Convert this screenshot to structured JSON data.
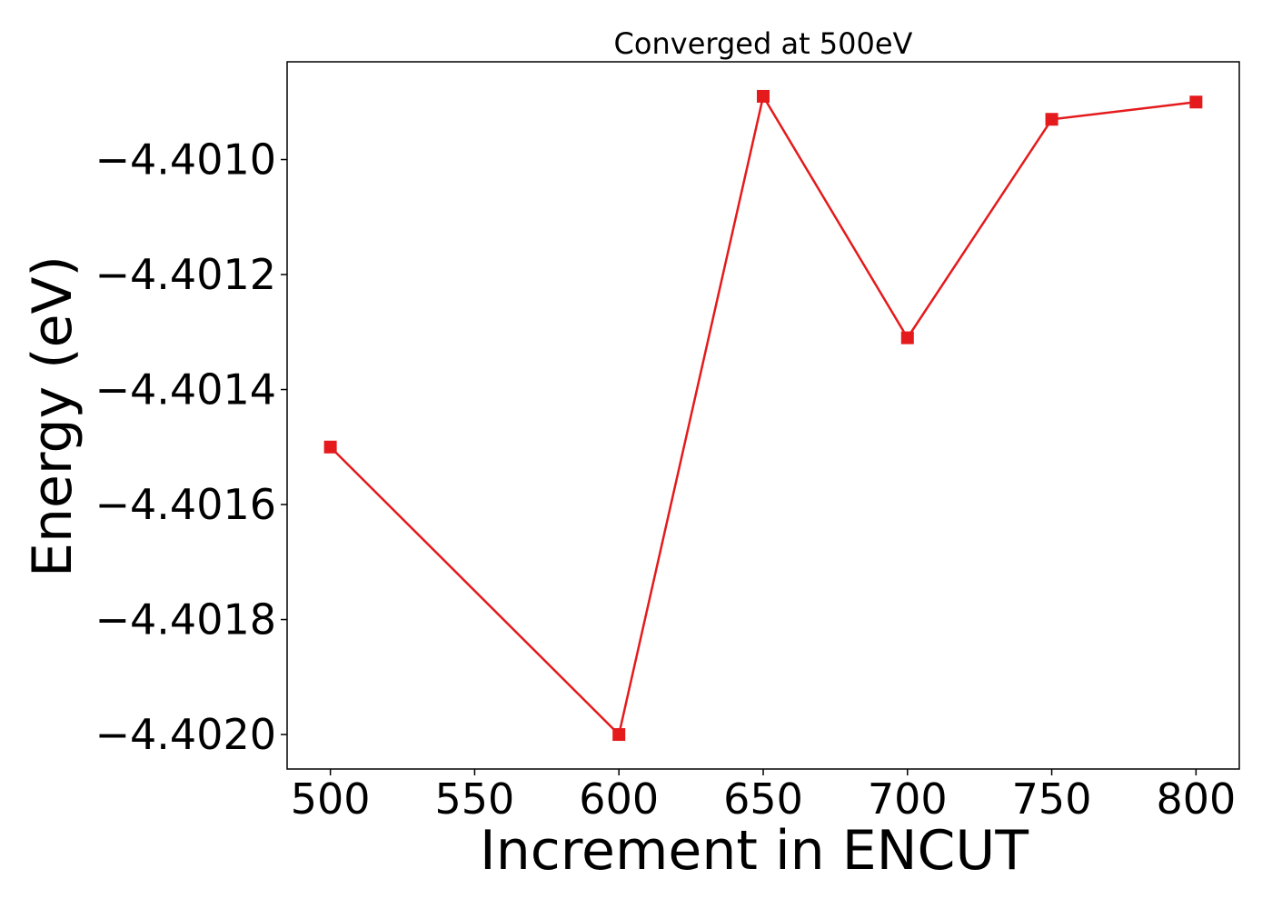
{
  "chart_data": {
    "type": "line",
    "title": "Converged at 500eV",
    "xlabel": "Increment in ENCUT",
    "ylabel": "Energy (eV)",
    "x": [
      500,
      600,
      650,
      700,
      750,
      800
    ],
    "series": [
      {
        "values": [
          -4.4015,
          -4.402,
          -4.40089,
          -4.40131,
          -4.40093,
          -4.4009
        ],
        "color": "#e41a1c",
        "marker": "square"
      }
    ],
    "xlim": [
      485,
      815
    ],
    "ylim": [
      -4.40206,
      -4.40083
    ],
    "xticks": [
      500,
      550,
      600,
      650,
      700,
      750,
      800
    ],
    "xtick_labels": [
      "500",
      "550",
      "600",
      "650",
      "700",
      "750",
      "800"
    ],
    "yticks": [
      -4.401,
      -4.4012,
      -4.4014,
      -4.4016,
      -4.4018,
      -4.402
    ],
    "ytick_labels": [
      "−4.4010",
      "−4.4012",
      "−4.4014",
      "−4.4016",
      "−4.4018",
      "−4.4020"
    ],
    "grid": false,
    "legend": "none"
  }
}
